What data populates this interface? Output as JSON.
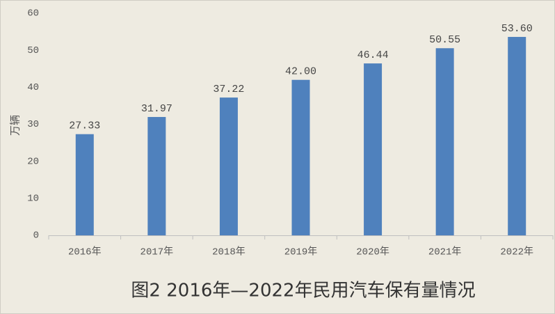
{
  "chart_data": {
    "type": "bar",
    "title": "图2 2016年—2022年民用汽车保有量情况",
    "y_label": "万辆",
    "categories": [
      "2016年",
      "2017年",
      "2018年",
      "2019年",
      "2020年",
      "2021年",
      "2022年"
    ],
    "values": [
      27.33,
      31.97,
      37.22,
      42.0,
      46.44,
      50.55,
      53.6
    ],
    "value_labels": [
      "27.33",
      "31.97",
      "37.22",
      "42.00",
      "46.44",
      "50.55",
      "53.60"
    ],
    "color": "#4f81bd",
    "ylim": [
      0,
      60
    ],
    "yticks": [
      0,
      10,
      20,
      30,
      40,
      50,
      60
    ],
    "grid": false
  }
}
